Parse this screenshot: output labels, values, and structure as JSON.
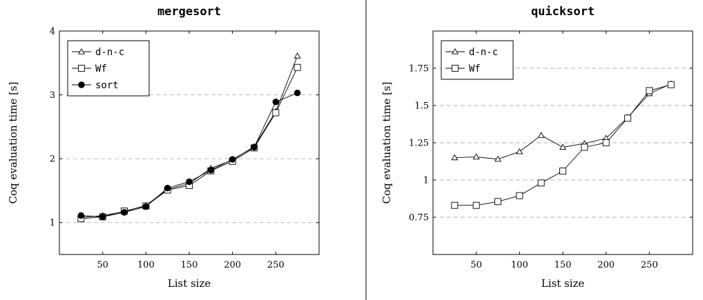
{
  "chart_data": [
    {
      "type": "line",
      "title": "mergesort",
      "xlabel": "List size",
      "ylabel": "Coq evaluation time [s]",
      "xlim": [
        0,
        300
      ],
      "ylim": [
        0.5,
        4
      ],
      "x_ticks": [
        50,
        100,
        150,
        200,
        250
      ],
      "x_tick_labels": [
        "50",
        "100",
        "150",
        "200",
        "250"
      ],
      "y_ticks": [
        1,
        2,
        3,
        4
      ],
      "y_tick_labels": [
        "1",
        "2",
        "3",
        "4"
      ],
      "grid": "horizontal-dashed",
      "legend_position": "top-left",
      "x": [
        25,
        50,
        75,
        100,
        125,
        150,
        175,
        200,
        225,
        250,
        275
      ],
      "series": [
        {
          "name": "d-n-c",
          "marker": "triangle",
          "values": [
            1.08,
            1.11,
            1.17,
            1.27,
            1.52,
            1.61,
            1.85,
            1.98,
            2.19,
            2.74,
            3.61
          ]
        },
        {
          "name": "Wf",
          "marker": "square",
          "values": [
            1.06,
            1.09,
            1.18,
            1.26,
            1.51,
            1.58,
            1.81,
            1.96,
            2.17,
            2.72,
            3.43
          ]
        },
        {
          "name": "sort",
          "marker": "circle",
          "values": [
            1.11,
            1.09,
            1.16,
            1.25,
            1.54,
            1.64,
            1.82,
            1.99,
            2.18,
            2.89,
            3.03
          ]
        }
      ]
    },
    {
      "type": "line",
      "title": "quicksort",
      "xlabel": "List size",
      "ylabel": "Coq evaluation time [s]",
      "xlim": [
        0,
        300
      ],
      "ylim": [
        0.5,
        2
      ],
      "x_ticks": [
        50,
        100,
        150,
        200,
        250
      ],
      "x_tick_labels": [
        "50",
        "100",
        "150",
        "200",
        "250"
      ],
      "y_ticks": [
        0.75,
        1,
        1.25,
        1.5,
        1.75
      ],
      "y_tick_labels": [
        "0.75",
        "1",
        "1.25",
        "1.5",
        "1.75"
      ],
      "grid": "horizontal-dashed",
      "legend_position": "top-left",
      "x": [
        25,
        50,
        75,
        100,
        125,
        150,
        175,
        200,
        225,
        250,
        275
      ],
      "series": [
        {
          "name": "d-n-c",
          "marker": "triangle",
          "values": [
            1.15,
            1.155,
            1.14,
            1.19,
            1.3,
            1.22,
            1.245,
            1.28,
            1.42,
            1.58,
            1.645
          ]
        },
        {
          "name": "Wf",
          "marker": "square",
          "values": [
            0.83,
            0.83,
            0.855,
            0.895,
            0.98,
            1.06,
            1.22,
            1.25,
            1.415,
            1.6,
            1.64
          ]
        }
      ]
    }
  ],
  "style": {
    "line_color": "#000000",
    "grid_color": "#b0b0b0",
    "divider_color": "#000000",
    "background": "#ffffff"
  }
}
